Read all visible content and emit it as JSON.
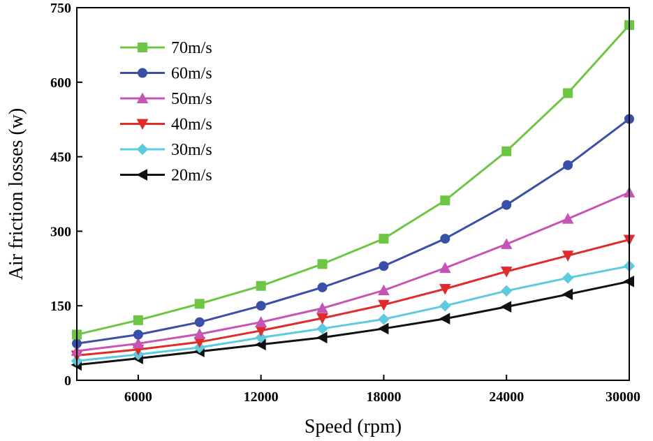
{
  "chart_data": {
    "type": "line",
    "title": "",
    "xlabel": "Speed (rpm)",
    "ylabel": "Air friction losses (w)",
    "xlim": [
      3000,
      30000
    ],
    "ylim": [
      0,
      750
    ],
    "xticks": [
      6000,
      12000,
      18000,
      24000,
      30000
    ],
    "xtick_labels": [
      "6000",
      "12000",
      "18000",
      "24000",
      "30000"
    ],
    "yticks": [
      0,
      150,
      300,
      450,
      600,
      750
    ],
    "ytick_labels": [
      "0",
      "150",
      "300",
      "450",
      "600",
      "750"
    ],
    "legend_position": "top-left",
    "x": [
      3000,
      6000,
      9000,
      12000,
      15000,
      18000,
      21000,
      24000,
      27000,
      30000
    ],
    "series": [
      {
        "name": "70m/s",
        "color": "#6cc644",
        "marker": "square",
        "values": [
          92,
          121,
          154,
          190,
          234,
          285,
          362,
          461,
          578,
          715
        ]
      },
      {
        "name": "60m/s",
        "color": "#3a4fa8",
        "marker": "circle",
        "values": [
          74,
          92,
          117,
          150,
          187,
          230,
          285,
          353,
          433,
          526
        ]
      },
      {
        "name": "50m/s",
        "color": "#c654b5",
        "marker": "triangle-up",
        "values": [
          59,
          74,
          93,
          117,
          145,
          181,
          226,
          274,
          325,
          378
        ]
      },
      {
        "name": "40m/s",
        "color": "#e02b2b",
        "marker": "triangle-down",
        "values": [
          50,
          62,
          77,
          100,
          125,
          152,
          184,
          219,
          251,
          283
        ]
      },
      {
        "name": "30m/s",
        "color": "#5ccbe0",
        "marker": "diamond",
        "values": [
          39,
          52,
          66,
          86,
          104,
          123,
          150,
          180,
          206,
          230
        ]
      },
      {
        "name": "20m/s",
        "color": "#111111",
        "marker": "triangle-left",
        "values": [
          31,
          44,
          58,
          72,
          86,
          104,
          124,
          148,
          173,
          199
        ]
      }
    ]
  }
}
